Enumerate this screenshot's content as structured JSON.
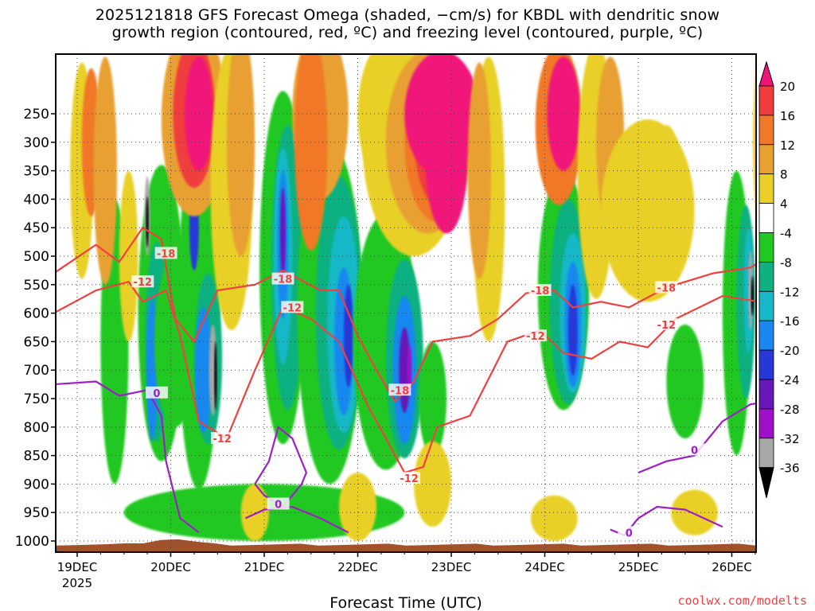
{
  "title_line1": "2025121818 GFS Forecast Omega (shaded, −cm/s) for KBDL with dendritic snow",
  "title_line2": "growth region (contoured, red, ºC) and freezing level (contoured, purple, ºC)",
  "credit": "coolwx.com/modelts",
  "colors": {
    "terrain": "#a0522d",
    "snow_growth_contour": "#f04040",
    "freezing_contour": "#9e1ec8",
    "grid": "#444444"
  },
  "chart_data": {
    "type": "heatmap",
    "title": "2025121818 GFS Forecast Omega (shaded, −cm/s) for KBDL with dendritic snow growth region (contoured, red, ºC) and freezing level (contoured, purple, ºC)",
    "xlabel": "Forecast Time (UTC)",
    "ylabel": "",
    "x_ticks": [
      "19DEC",
      "20DEC",
      "21DEC",
      "22DEC",
      "23DEC",
      "24DEC",
      "25DEC",
      "26DEC"
    ],
    "x_tick_sublabel": "2025",
    "y_ticks": [
      250,
      300,
      350,
      400,
      450,
      500,
      550,
      600,
      650,
      700,
      750,
      800,
      850,
      900,
      950,
      1000
    ],
    "y_axis": "pressure (hPa), reversed",
    "grid": true,
    "colorbar": {
      "label_values": [
        20,
        16,
        12,
        8,
        4,
        -4,
        -8,
        -12,
        -16,
        -20,
        -24,
        -28,
        -32,
        -36
      ],
      "bins": [
        {
          "range": "> 20",
          "color": "#f0147a"
        },
        {
          "range": "16 to 20",
          "color": "#f03c3c"
        },
        {
          "range": "12 to 16",
          "color": "#f07828"
        },
        {
          "range": "8 to 12",
          "color": "#e8a030"
        },
        {
          "range": "4 to 8",
          "color": "#e8d028"
        },
        {
          "range": "-4 to 4",
          "color": "#ffffff"
        },
        {
          "range": "-8 to -4",
          "color": "#20c820"
        },
        {
          "range": "-12 to -8",
          "color": "#10b080"
        },
        {
          "range": "-16 to -12",
          "color": "#18b8c8"
        },
        {
          "range": "-20 to -16",
          "color": "#1888f0"
        },
        {
          "range": "-24 to -20",
          "color": "#2838d8"
        },
        {
          "range": "-28 to -24",
          "color": "#6818b8"
        },
        {
          "range": "-32 to -28",
          "color": "#a010c8"
        },
        {
          "range": "-36 to -32",
          "color": "#a8a8a8"
        },
        {
          "range": "< -36",
          "color": "#000000"
        }
      ]
    },
    "contour_labels": [
      {
        "text": "-18",
        "t": 0.95,
        "p": 495
      },
      {
        "text": "-12",
        "t": 0.7,
        "p": 545
      },
      {
        "text": "-12",
        "t": 1.55,
        "p": 820
      },
      {
        "text": "-18",
        "t": 2.2,
        "p": 540
      },
      {
        "text": "-12",
        "t": 2.3,
        "p": 590
      },
      {
        "text": "-18",
        "t": 3.45,
        "p": 735
      },
      {
        "text": "-12",
        "t": 3.55,
        "p": 890
      },
      {
        "text": "-18",
        "t": 4.95,
        "p": 560
      },
      {
        "text": "-12",
        "t": 4.9,
        "p": 640
      },
      {
        "text": "-18",
        "t": 6.3,
        "p": 555
      },
      {
        "text": "-12",
        "t": 6.3,
        "p": 620
      },
      {
        "text": "0",
        "t": 0.85,
        "p": 740
      },
      {
        "text": "0",
        "t": 2.15,
        "p": 935
      },
      {
        "text": "0",
        "t": 6.6,
        "p": 840
      },
      {
        "text": "0",
        "t": 5.9,
        "p": 985
      }
    ]
  }
}
